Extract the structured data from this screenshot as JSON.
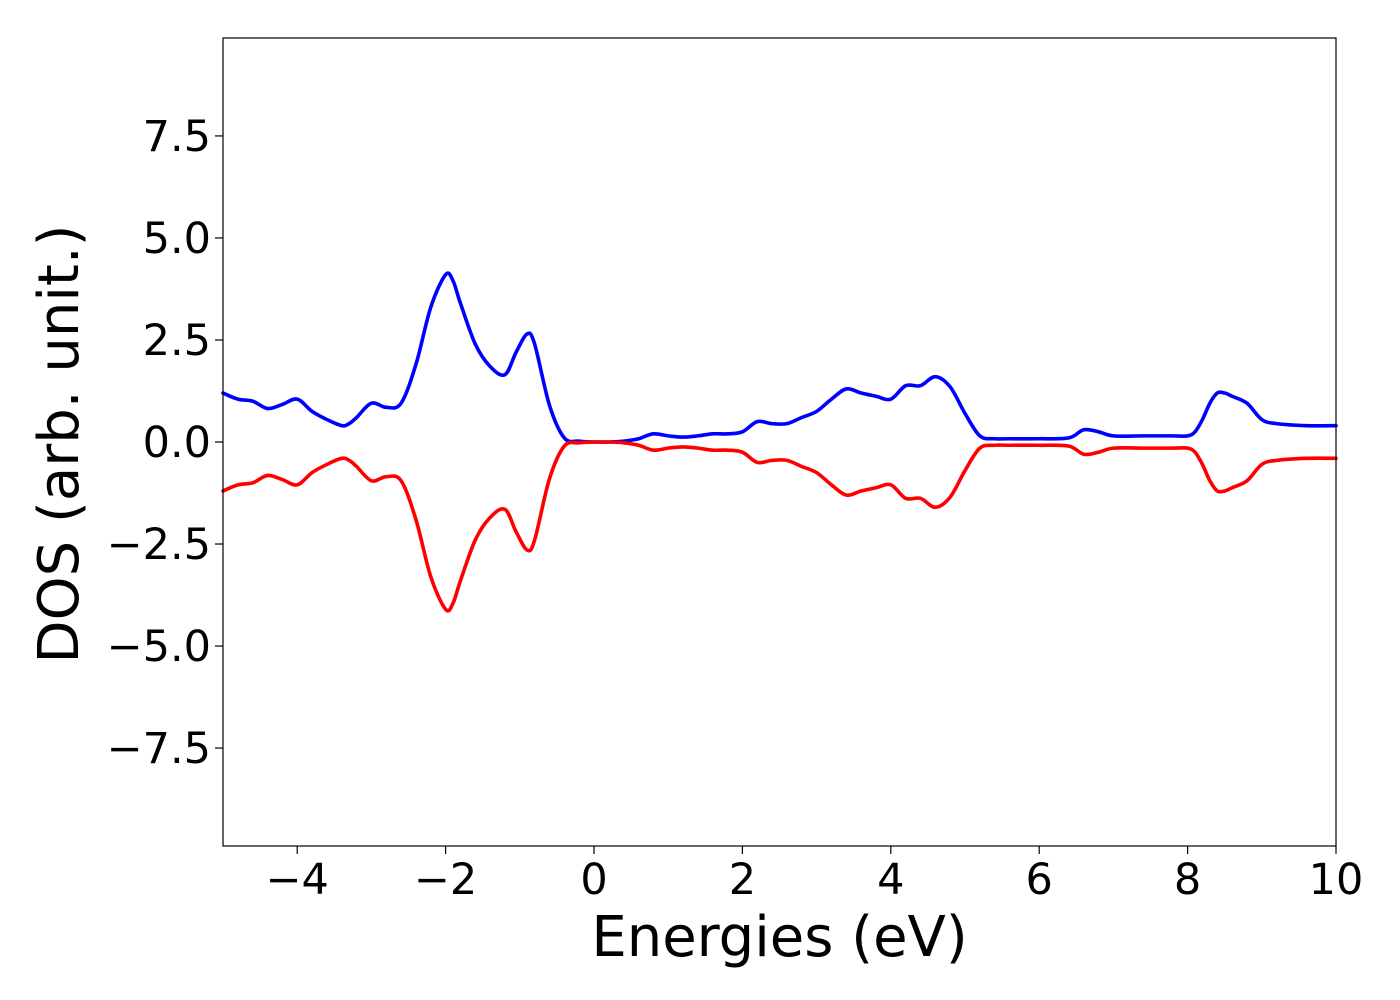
{
  "chart_data": {
    "type": "line",
    "title": "",
    "xlabel": "Energies (eV)",
    "ylabel": "DOS (arb. unit.)",
    "xlim": [
      -5,
      10
    ],
    "ylim": [
      -9.9,
      9.9
    ],
    "xticks": [
      -4,
      -2,
      0,
      2,
      4,
      6,
      8,
      10
    ],
    "xtick_labels": [
      "−4",
      "−2",
      "0",
      "2",
      "4",
      "6",
      "8",
      "10"
    ],
    "yticks": [
      7.5,
      5.0,
      2.5,
      0.0,
      -2.5,
      -5.0,
      -7.5
    ],
    "ytick_labels": [
      "7.5",
      "5.0",
      "2.5",
      "0.0",
      "−2.5",
      "−5.0",
      "−7.5"
    ],
    "grid": false,
    "legend": "none",
    "series": [
      {
        "color": "#0000ff",
        "x": [
          -5.0,
          -4.8,
          -4.6,
          -4.4,
          -4.2,
          -4.0,
          -3.8,
          -3.6,
          -3.4,
          -3.3,
          -3.2,
          -3.0,
          -2.8,
          -2.6,
          -2.4,
          -2.2,
          -2.0,
          -1.9,
          -1.8,
          -1.6,
          -1.4,
          -1.2,
          -1.05,
          -0.9,
          -0.8,
          -0.6,
          -0.4,
          -0.2,
          0.0,
          0.2,
          0.4,
          0.6,
          0.8,
          1.0,
          1.2,
          1.4,
          1.6,
          1.8,
          2.0,
          2.2,
          2.4,
          2.6,
          2.8,
          3.0,
          3.2,
          3.4,
          3.6,
          3.8,
          4.0,
          4.2,
          4.4,
          4.6,
          4.8,
          5.0,
          5.2,
          5.4,
          5.6,
          6.0,
          6.4,
          6.6,
          6.8,
          7.0,
          7.4,
          7.8,
          8.0,
          8.1,
          8.2,
          8.3,
          8.4,
          8.5,
          8.6,
          8.8,
          9.0,
          9.2,
          9.6,
          10.0
        ],
        "y": [
          1.2,
          1.05,
          1.0,
          0.82,
          0.92,
          1.05,
          0.75,
          0.55,
          0.4,
          0.45,
          0.6,
          0.95,
          0.85,
          0.95,
          1.9,
          3.3,
          4.1,
          3.95,
          3.4,
          2.4,
          1.85,
          1.65,
          2.2,
          2.65,
          2.4,
          0.9,
          0.1,
          0.02,
          0.0,
          0.0,
          0.02,
          0.08,
          0.2,
          0.15,
          0.12,
          0.15,
          0.2,
          0.2,
          0.25,
          0.5,
          0.45,
          0.45,
          0.6,
          0.75,
          1.05,
          1.3,
          1.2,
          1.12,
          1.05,
          1.38,
          1.38,
          1.6,
          1.35,
          0.7,
          0.15,
          0.08,
          0.08,
          0.08,
          0.1,
          0.3,
          0.25,
          0.15,
          0.15,
          0.15,
          0.15,
          0.25,
          0.55,
          0.95,
          1.2,
          1.2,
          1.12,
          0.95,
          0.55,
          0.45,
          0.4,
          0.4
        ]
      },
      {
        "color": "#ff0000",
        "x": [
          -5.0,
          -4.8,
          -4.6,
          -4.4,
          -4.2,
          -4.0,
          -3.8,
          -3.6,
          -3.4,
          -3.3,
          -3.2,
          -3.0,
          -2.8,
          -2.6,
          -2.4,
          -2.2,
          -2.0,
          -1.9,
          -1.8,
          -1.6,
          -1.4,
          -1.2,
          -1.05,
          -0.9,
          -0.8,
          -0.6,
          -0.4,
          -0.2,
          0.0,
          0.2,
          0.4,
          0.6,
          0.8,
          1.0,
          1.2,
          1.4,
          1.6,
          1.8,
          2.0,
          2.2,
          2.4,
          2.6,
          2.8,
          3.0,
          3.2,
          3.4,
          3.6,
          3.8,
          4.0,
          4.2,
          4.4,
          4.6,
          4.8,
          5.0,
          5.2,
          5.4,
          5.6,
          6.0,
          6.4,
          6.6,
          6.8,
          7.0,
          7.4,
          7.8,
          8.0,
          8.1,
          8.2,
          8.3,
          8.4,
          8.5,
          8.6,
          8.8,
          9.0,
          9.2,
          9.6,
          10.0
        ],
        "y": [
          -1.2,
          -1.05,
          -1.0,
          -0.82,
          -0.92,
          -1.05,
          -0.75,
          -0.55,
          -0.4,
          -0.45,
          -0.6,
          -0.95,
          -0.85,
          -0.95,
          -1.9,
          -3.3,
          -4.1,
          -3.95,
          -3.4,
          -2.4,
          -1.85,
          -1.65,
          -2.2,
          -2.65,
          -2.4,
          -0.9,
          -0.1,
          -0.02,
          0.0,
          0.0,
          -0.02,
          -0.08,
          -0.2,
          -0.15,
          -0.12,
          -0.15,
          -0.2,
          -0.2,
          -0.25,
          -0.5,
          -0.45,
          -0.45,
          -0.6,
          -0.75,
          -1.05,
          -1.3,
          -1.2,
          -1.12,
          -1.05,
          -1.38,
          -1.38,
          -1.6,
          -1.35,
          -0.7,
          -0.15,
          -0.08,
          -0.08,
          -0.08,
          -0.1,
          -0.3,
          -0.25,
          -0.15,
          -0.15,
          -0.15,
          -0.15,
          -0.25,
          -0.55,
          -0.95,
          -1.2,
          -1.2,
          -1.12,
          -0.95,
          -0.55,
          -0.45,
          -0.4,
          -0.4
        ]
      }
    ]
  }
}
